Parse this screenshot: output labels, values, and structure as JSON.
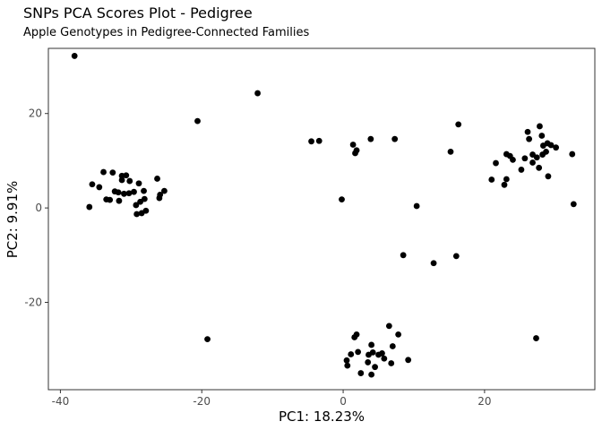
{
  "chart_data": {
    "type": "scatter",
    "title": "SNPs PCA Scores Plot - Pedigree",
    "subtitle": "Apple Genotypes in Pedigree-Connected Families",
    "xlabel": "PC1: 18.23%",
    "ylabel": "PC2: 9.91%",
    "xlim": [
      -41.7,
      35.6
    ],
    "ylim": [
      -38.5,
      33.8
    ],
    "xticks": [
      -40,
      -20,
      0,
      20
    ],
    "yticks": [
      -20,
      0,
      20
    ],
    "grid": false,
    "point_color": "#000000",
    "points": [
      [
        -38.0,
        32.2
      ],
      [
        -12.1,
        24.3
      ],
      [
        -20.6,
        18.4
      ],
      [
        -19.2,
        -27.8
      ],
      [
        -35.5,
        5.0
      ],
      [
        -34.5,
        4.4
      ],
      [
        -33.9,
        7.6
      ],
      [
        -32.6,
        7.5
      ],
      [
        -33.5,
        1.8
      ],
      [
        -33.0,
        1.7
      ],
      [
        -32.3,
        3.5
      ],
      [
        -31.3,
        6.8
      ],
      [
        -31.3,
        5.9
      ],
      [
        -30.7,
        6.9
      ],
      [
        -30.2,
        5.7
      ],
      [
        -31.8,
        3.3
      ],
      [
        -31.0,
        3.0
      ],
      [
        -30.3,
        3.1
      ],
      [
        -29.6,
        3.4
      ],
      [
        -31.7,
        1.5
      ],
      [
        -29.3,
        0.6
      ],
      [
        -28.7,
        1.3
      ],
      [
        -28.1,
        1.9
      ],
      [
        -28.9,
        5.2
      ],
      [
        -28.2,
        3.6
      ],
      [
        -29.2,
        -1.3
      ],
      [
        -28.5,
        -1.1
      ],
      [
        -27.9,
        -0.6
      ],
      [
        -26.3,
        6.2
      ],
      [
        -26.0,
        2.1
      ],
      [
        -25.9,
        2.8
      ],
      [
        -25.3,
        3.6
      ],
      [
        -35.9,
        0.2
      ],
      [
        -4.5,
        14.1
      ],
      [
        -3.4,
        14.2
      ],
      [
        1.4,
        13.4
      ],
      [
        1.7,
        11.6
      ],
      [
        1.9,
        12.2
      ],
      [
        3.9,
        14.6
      ],
      [
        7.3,
        14.6
      ],
      [
        -0.2,
        1.8
      ],
      [
        10.4,
        0.4
      ],
      [
        15.2,
        11.9
      ],
      [
        16.3,
        17.7
      ],
      [
        8.5,
        -10.0
      ],
      [
        12.8,
        -11.7
      ],
      [
        16.0,
        -10.2
      ],
      [
        21.0,
        6.0
      ],
      [
        21.6,
        9.5
      ],
      [
        22.8,
        4.9
      ],
      [
        23.1,
        6.1
      ],
      [
        23.1,
        11.4
      ],
      [
        23.6,
        11.0
      ],
      [
        24.0,
        10.2
      ],
      [
        25.2,
        8.1
      ],
      [
        25.7,
        10.5
      ],
      [
        26.1,
        16.1
      ],
      [
        26.3,
        14.6
      ],
      [
        26.8,
        11.3
      ],
      [
        26.8,
        9.6
      ],
      [
        27.4,
        10.7
      ],
      [
        27.7,
        8.5
      ],
      [
        27.8,
        17.3
      ],
      [
        28.2,
        11.3
      ],
      [
        28.1,
        15.3
      ],
      [
        28.3,
        13.2
      ],
      [
        28.7,
        11.9
      ],
      [
        28.9,
        13.7
      ],
      [
        29.4,
        13.3
      ],
      [
        29.0,
        6.7
      ],
      [
        30.1,
        12.8
      ],
      [
        32.4,
        11.4
      ],
      [
        32.6,
        0.8
      ],
      [
        27.3,
        -27.6
      ],
      [
        0.5,
        -32.3
      ],
      [
        0.6,
        -33.4
      ],
      [
        1.1,
        -31.0
      ],
      [
        1.6,
        -27.4
      ],
      [
        1.9,
        -26.8
      ],
      [
        2.1,
        -30.5
      ],
      [
        2.5,
        -35.0
      ],
      [
        3.5,
        -32.7
      ],
      [
        3.6,
        -31.1
      ],
      [
        4.0,
        -29.0
      ],
      [
        4.2,
        -30.6
      ],
      [
        4.0,
        -35.3
      ],
      [
        4.5,
        -33.7
      ],
      [
        5.0,
        -31.1
      ],
      [
        5.5,
        -30.8
      ],
      [
        5.8,
        -31.9
      ],
      [
        6.5,
        -25.0
      ],
      [
        6.8,
        -32.9
      ],
      [
        7.0,
        -29.3
      ],
      [
        7.8,
        -26.8
      ],
      [
        9.2,
        -32.2
      ]
    ]
  }
}
